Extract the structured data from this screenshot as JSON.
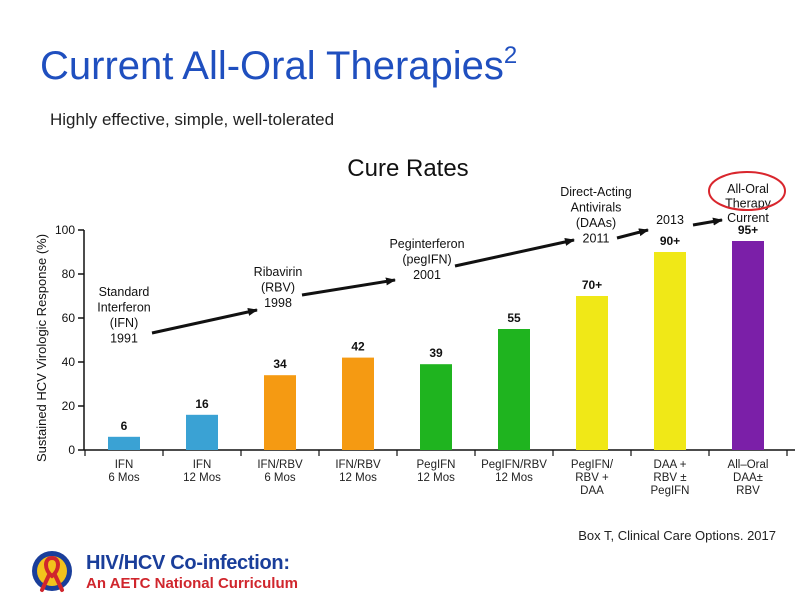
{
  "slide": {
    "title": "Current All-Oral Therapies",
    "title_superscript": "2",
    "subtitle": "Highly effective, simple, well-tolerated",
    "citation": "Box T, Clinical Care Options. 2017"
  },
  "logo": {
    "line1": "HIV/HCV Co-infection:",
    "line2": "An AETC National Curriculum"
  },
  "colors": {
    "title": "#1f4fbf",
    "highlight_circle": "#d9262d"
  },
  "chart_data": {
    "type": "bar",
    "title": "Cure Rates",
    "ylabel": "Sustained HCV Virologic Response (%)",
    "xlabel": "",
    "ylim": [
      0,
      100
    ],
    "yticks": [
      0,
      20,
      40,
      60,
      80,
      100
    ],
    "grid": false,
    "categories": [
      [
        "IFN",
        "6 Mos"
      ],
      [
        "IFN",
        "12 Mos"
      ],
      [
        "IFN/RBV",
        "6 Mos"
      ],
      [
        "IFN/RBV",
        "12 Mos"
      ],
      [
        "PegIFN",
        "12 Mos"
      ],
      [
        "PegIFN/RBV",
        "12 Mos"
      ],
      [
        "PegIFN/",
        "RBV +",
        "DAA"
      ],
      [
        "DAA +",
        "RBV ±",
        "PegIFN"
      ],
      [
        "All–Oral",
        "DAA±",
        "RBV"
      ]
    ],
    "values": [
      6,
      16,
      34,
      42,
      39,
      55,
      70,
      90,
      95
    ],
    "value_labels": [
      "6",
      "16",
      "34",
      "42",
      "39",
      "55",
      "70+",
      "90+",
      "95+"
    ],
    "bar_colors": [
      "#3aa2d4",
      "#3aa2d4",
      "#f59a12",
      "#f59a12",
      "#1fb41f",
      "#1fb41f",
      "#f0e817",
      "#f0e817",
      "#7b1fa8"
    ],
    "annotations": [
      {
        "lines": [
          "Standard",
          "Interferon",
          "(IFN)",
          "1991"
        ]
      },
      {
        "lines": [
          "Ribavirin",
          "(RBV)",
          "1998"
        ]
      },
      {
        "lines": [
          "Peginterferon",
          "(pegIFN)",
          "2001"
        ]
      },
      {
        "lines": [
          "Direct-Acting",
          "Antivirals",
          "(DAAs)",
          "2011"
        ]
      },
      {
        "lines": [
          "2013"
        ]
      },
      {
        "lines": [
          "All-Oral",
          "Therapy",
          "Current"
        ]
      }
    ]
  }
}
